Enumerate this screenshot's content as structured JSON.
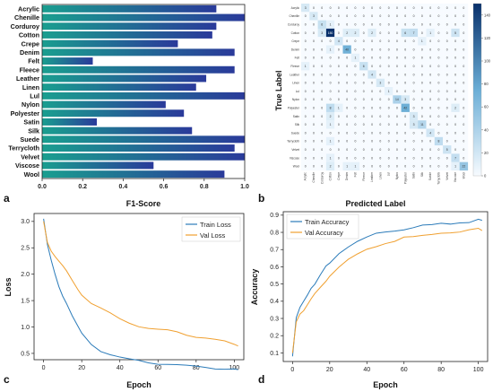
{
  "panels": [
    {
      "letter": "a"
    },
    {
      "letter": "b"
    },
    {
      "letter": "c"
    },
    {
      "letter": "d"
    }
  ],
  "colors": {
    "bar_start": "#1a9e8f",
    "bar_end": "#2a3a9a",
    "train": "#2b7bb9",
    "val": "#f0a030",
    "heat_low": "#f7fbff",
    "heat_high": "#08306b"
  },
  "chart_data": [
    {
      "type": "bar",
      "orientation": "horizontal",
      "title": "",
      "xlabel": "F1-Score",
      "ylabel": "",
      "categories": [
        "Acrylic",
        "Chenille",
        "Corduroy",
        "Cotton",
        "Crepe",
        "Denim",
        "Felt",
        "Fleece",
        "Leather",
        "Linen",
        "Lul",
        "Nylon",
        "Polyester",
        "Satin",
        "Silk",
        "Suede",
        "Terrycloth",
        "Velvet",
        "Viscose",
        "Wool"
      ],
      "values": [
        0.86,
        1.0,
        0.86,
        0.84,
        0.67,
        0.95,
        0.25,
        0.95,
        0.81,
        0.76,
        1.0,
        0.61,
        0.7,
        0.27,
        0.74,
        1.0,
        0.95,
        1.0,
        0.55,
        0.9
      ],
      "xlim": [
        0,
        1
      ],
      "xticks": [
        "0.0",
        "0.2",
        "0.4",
        "0.6",
        "0.8",
        "1.0"
      ],
      "grid": false
    },
    {
      "type": "heatmap",
      "title": "",
      "xlabel": "Predicted Label",
      "ylabel": "True Label",
      "labels": [
        "Acrylic",
        "Chenille",
        "Corduroy",
        "Cotton",
        "Crepe",
        "Denim",
        "Felt",
        "Fleece",
        "Leather",
        "Linen",
        "Lul",
        "Nylon",
        "Polyester",
        "Satin",
        "Silk",
        "Suede",
        "Terrycloth",
        "Velvet",
        "Viscose",
        "Wool"
      ],
      "matrix": [
        [
          3,
          0,
          0,
          0,
          0,
          0,
          0,
          0,
          0,
          0,
          0,
          0,
          0,
          0,
          0,
          0,
          0,
          0,
          0,
          0
        ],
        [
          0,
          3,
          0,
          0,
          0,
          0,
          0,
          0,
          0,
          0,
          0,
          0,
          0,
          0,
          0,
          0,
          0,
          0,
          0,
          0
        ],
        [
          0,
          0,
          6,
          1,
          0,
          0,
          0,
          0,
          0,
          0,
          0,
          0,
          0,
          0,
          0,
          0,
          0,
          0,
          0,
          0
        ],
        [
          0,
          0,
          3,
          150,
          0,
          2,
          2,
          0,
          2,
          0,
          0,
          0,
          6,
          7,
          0,
          1,
          0,
          0,
          5,
          0
        ],
        [
          0,
          0,
          0,
          0,
          4,
          0,
          0,
          0,
          0,
          0,
          0,
          0,
          0,
          0,
          1,
          0,
          0,
          0,
          0,
          0
        ],
        [
          0,
          0,
          0,
          1,
          0,
          40,
          0,
          0,
          0,
          0,
          0,
          0,
          0,
          0,
          0,
          0,
          0,
          0,
          0,
          0
        ],
        [
          0,
          0,
          0,
          0,
          0,
          0,
          1,
          0,
          0,
          0,
          0,
          0,
          0,
          0,
          0,
          0,
          0,
          0,
          0,
          0
        ],
        [
          1,
          0,
          0,
          0,
          0,
          0,
          0,
          6,
          0,
          0,
          0,
          0,
          0,
          0,
          0,
          0,
          0,
          0,
          0,
          0
        ],
        [
          0,
          0,
          0,
          0,
          0,
          0,
          0,
          0,
          4,
          0,
          0,
          0,
          0,
          0,
          0,
          0,
          0,
          0,
          0,
          0
        ],
        [
          0,
          0,
          0,
          0,
          0,
          0,
          0,
          0,
          0,
          3,
          0,
          0,
          0,
          0,
          0,
          0,
          0,
          0,
          0,
          0
        ],
        [
          0,
          0,
          0,
          0,
          0,
          0,
          0,
          0,
          0,
          0,
          1,
          0,
          0,
          0,
          0,
          0,
          0,
          0,
          0,
          0
        ],
        [
          0,
          0,
          0,
          0,
          0,
          0,
          0,
          0,
          0,
          0,
          0,
          14,
          3,
          0,
          0,
          0,
          0,
          0,
          0,
          0
        ],
        [
          0,
          0,
          0,
          8,
          1,
          0,
          0,
          0,
          0,
          0,
          0,
          0,
          42,
          0,
          0,
          0,
          0,
          0,
          2,
          0
        ],
        [
          0,
          0,
          0,
          2,
          0,
          0,
          0,
          0,
          0,
          0,
          0,
          0,
          0,
          3,
          0,
          0,
          0,
          0,
          0,
          0
        ],
        [
          0,
          0,
          0,
          1,
          0,
          0,
          0,
          0,
          0,
          0,
          0,
          0,
          0,
          3,
          11,
          0,
          0,
          0,
          0,
          0
        ],
        [
          0,
          0,
          0,
          0,
          0,
          0,
          0,
          0,
          0,
          0,
          0,
          0,
          0,
          0,
          0,
          4,
          0,
          0,
          0,
          0
        ],
        [
          0,
          0,
          0,
          1,
          0,
          0,
          0,
          0,
          0,
          0,
          0,
          0,
          0,
          0,
          0,
          0,
          8,
          0,
          0,
          0
        ],
        [
          0,
          0,
          0,
          0,
          0,
          0,
          0,
          0,
          0,
          0,
          0,
          0,
          0,
          0,
          0,
          0,
          0,
          5,
          0,
          0
        ],
        [
          0,
          0,
          0,
          1,
          0,
          0,
          0,
          0,
          0,
          0,
          0,
          0,
          0,
          0,
          0,
          0,
          0,
          0,
          7,
          0
        ],
        [
          0,
          0,
          0,
          2,
          0,
          1,
          1,
          0,
          0,
          0,
          0,
          0,
          0,
          0,
          0,
          0,
          0,
          0,
          1,
          22
        ]
      ],
      "colorbar_ticks": [
        "0",
        "20",
        "40",
        "60",
        "80",
        "100",
        "120",
        "140"
      ],
      "colorbar_range": [
        0,
        150
      ]
    },
    {
      "type": "line",
      "title": "",
      "xlabel": "Epoch",
      "ylabel": "Loss",
      "xlim": [
        -5,
        105
      ],
      "ylim": [
        0.38,
        3.15
      ],
      "xticks": [
        "0",
        "20",
        "40",
        "60",
        "80",
        "100"
      ],
      "yticks": [
        "0.5",
        "1.0",
        "1.5",
        "2.0",
        "2.5",
        "3.0"
      ],
      "legend_position": "top-right",
      "series": [
        {
          "name": "Train Loss",
          "x": [
            0,
            2,
            4,
            6,
            8,
            10,
            12,
            15,
            18,
            20,
            25,
            30,
            35,
            40,
            45,
            50,
            55,
            60,
            65,
            70,
            75,
            80,
            85,
            90,
            95,
            100,
            102
          ],
          "y": [
            3.05,
            2.55,
            2.25,
            2.0,
            1.78,
            1.6,
            1.45,
            1.2,
            1.0,
            0.88,
            0.68,
            0.55,
            0.48,
            0.42,
            0.38,
            0.36,
            0.33,
            0.31,
            0.3,
            0.28,
            0.26,
            0.25,
            0.24,
            0.22,
            0.21,
            0.2,
            0.19
          ]
        },
        {
          "name": "Val Loss",
          "x": [
            0,
            2,
            4,
            6,
            8,
            10,
            12,
            15,
            18,
            20,
            25,
            30,
            35,
            40,
            45,
            50,
            55,
            60,
            65,
            70,
            75,
            80,
            85,
            90,
            95,
            100,
            102
          ],
          "y": [
            3.0,
            2.6,
            2.45,
            2.35,
            2.25,
            2.15,
            2.05,
            1.88,
            1.72,
            1.62,
            1.45,
            1.35,
            1.25,
            1.15,
            1.08,
            1.02,
            0.98,
            0.95,
            0.93,
            0.9,
            0.85,
            0.82,
            0.8,
            0.76,
            0.72,
            0.66,
            0.64
          ]
        }
      ]
    },
    {
      "type": "line",
      "title": "",
      "xlabel": "Epoch",
      "ylabel": "Accuracy",
      "xlim": [
        -5,
        105
      ],
      "ylim": [
        0.05,
        0.92
      ],
      "xticks": [
        "0",
        "20",
        "40",
        "60",
        "80",
        "100"
      ],
      "yticks": [
        "0.1",
        "0.2",
        "0.3",
        "0.4",
        "0.5",
        "0.6",
        "0.7",
        "0.8",
        "0.9"
      ],
      "legend_position": "top-left",
      "series": [
        {
          "name": "Train Accuracy",
          "x": [
            0,
            2,
            4,
            6,
            8,
            10,
            12,
            15,
            18,
            20,
            25,
            30,
            35,
            40,
            45,
            50,
            55,
            60,
            65,
            70,
            75,
            80,
            85,
            90,
            95,
            100,
            102
          ],
          "y": [
            0.08,
            0.3,
            0.36,
            0.4,
            0.44,
            0.48,
            0.5,
            0.55,
            0.6,
            0.62,
            0.68,
            0.72,
            0.75,
            0.77,
            0.79,
            0.8,
            0.81,
            0.82,
            0.83,
            0.84,
            0.84,
            0.85,
            0.85,
            0.86,
            0.86,
            0.875,
            0.87
          ]
        },
        {
          "name": "Val Accuracy",
          "x": [
            0,
            2,
            4,
            6,
            8,
            10,
            12,
            15,
            18,
            20,
            25,
            30,
            35,
            40,
            45,
            50,
            55,
            60,
            65,
            70,
            75,
            80,
            85,
            90,
            95,
            100,
            102
          ],
          "y": [
            0.1,
            0.28,
            0.33,
            0.35,
            0.38,
            0.41,
            0.44,
            0.48,
            0.52,
            0.55,
            0.6,
            0.64,
            0.67,
            0.7,
            0.72,
            0.74,
            0.75,
            0.77,
            0.77,
            0.78,
            0.79,
            0.8,
            0.8,
            0.8,
            0.81,
            0.82,
            0.81
          ]
        }
      ]
    }
  ]
}
